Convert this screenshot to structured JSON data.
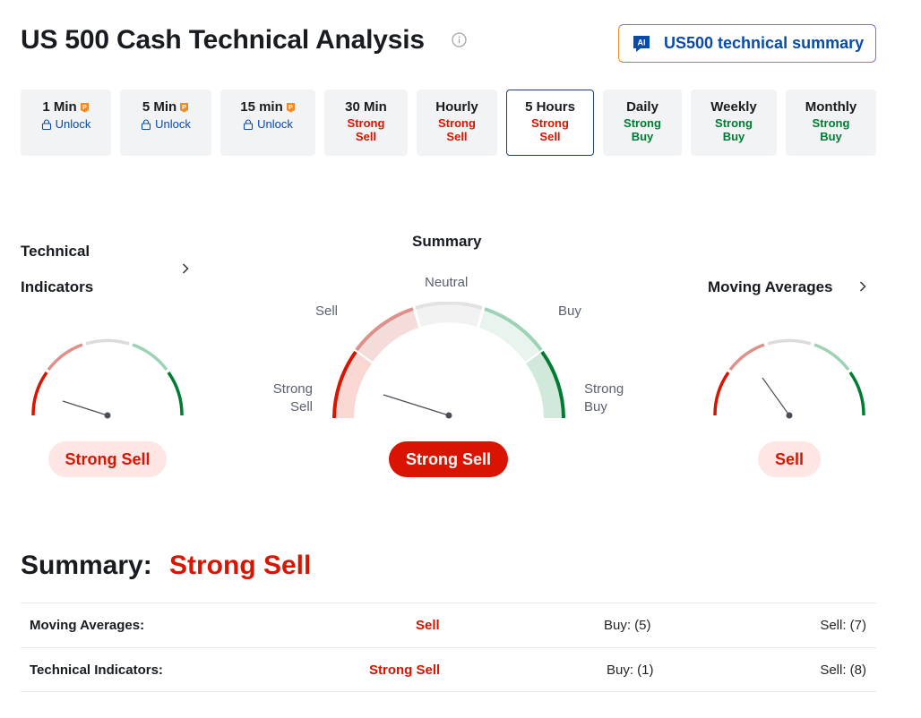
{
  "header": {
    "title": "US 500 Cash Technical Analysis",
    "ai_button_label": "US500 technical summary",
    "ai_badge": "AI"
  },
  "tabs": [
    {
      "label": "1 Min",
      "sub": "Unlock",
      "kind": "unlock",
      "premium": true
    },
    {
      "label": "5 Min",
      "sub": "Unlock",
      "kind": "unlock",
      "premium": true
    },
    {
      "label": "15 min",
      "sub": "Unlock",
      "kind": "unlock",
      "premium": true
    },
    {
      "label": "30 Min",
      "sub1": "Strong",
      "sub2": "Sell",
      "kind": "sell"
    },
    {
      "label": "Hourly",
      "sub1": "Strong",
      "sub2": "Sell",
      "kind": "sell"
    },
    {
      "label": "5 Hours",
      "sub1": "Strong",
      "sub2": "Sell",
      "kind": "sell",
      "active": true
    },
    {
      "label": "Daily",
      "sub1": "Strong",
      "sub2": "Buy",
      "kind": "buy"
    },
    {
      "label": "Weekly",
      "sub1": "Strong",
      "sub2": "Buy",
      "kind": "buy"
    },
    {
      "label": "Monthly",
      "sub1": "Strong",
      "sub2": "Buy",
      "kind": "buy"
    }
  ],
  "technical_indicators": {
    "title_line1": "Technical",
    "title_line2": "Indicators",
    "signal": "Strong Sell"
  },
  "summary_gauge": {
    "title": "Summary",
    "labels": {
      "strong_sell_1": "Strong",
      "strong_sell_2": "Sell",
      "sell": "Sell",
      "neutral": "Neutral",
      "buy": "Buy",
      "strong_buy_1": "Strong",
      "strong_buy_2": "Buy"
    },
    "signal": "Strong Sell"
  },
  "moving_averages": {
    "title": "Moving Averages",
    "signal": "Sell"
  },
  "summary": {
    "heading": "Summary:",
    "value": "Strong Sell",
    "rows": [
      {
        "label": "Moving Averages:",
        "action": "Sell",
        "buy": "Buy: (5)",
        "sell": "Sell: (7)"
      },
      {
        "label": "Technical Indicators:",
        "action": "Strong Sell",
        "buy": "Buy: (1)",
        "sell": "Sell: (8)"
      }
    ]
  },
  "colors": {
    "sell": "#d91400",
    "buy": "#007c32",
    "link": "#0a4aa8",
    "active_border": "#1c3f6e"
  }
}
